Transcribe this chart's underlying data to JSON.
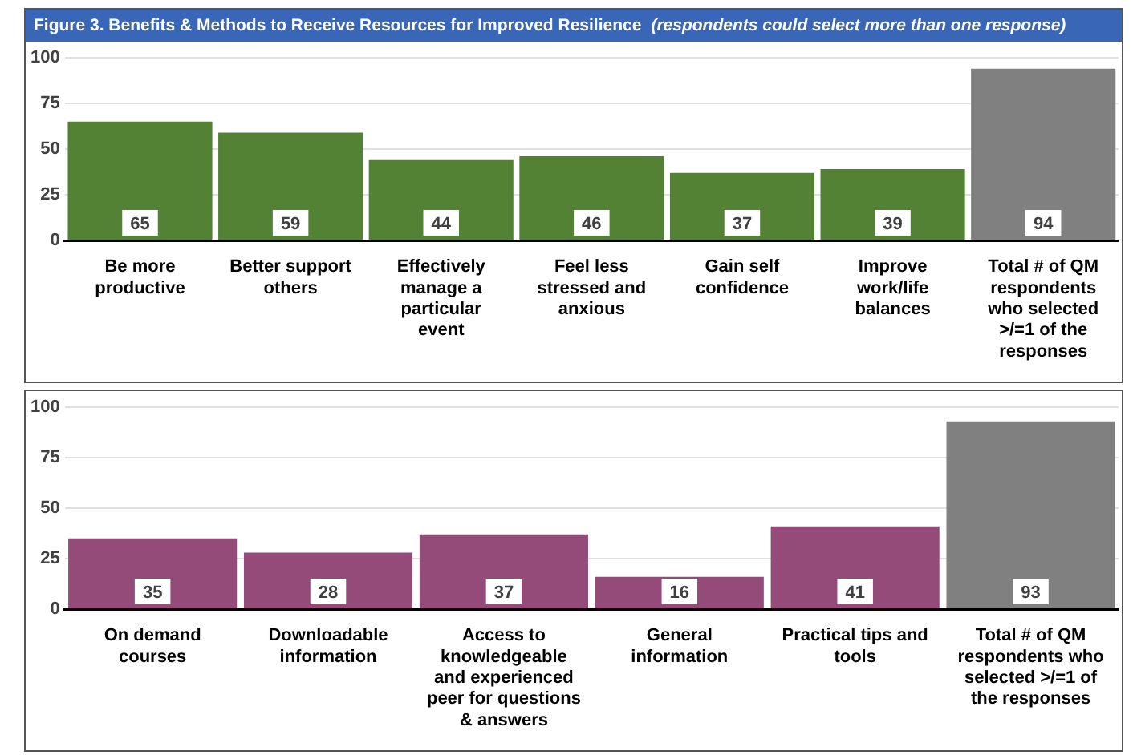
{
  "chart_data": [
    {
      "type": "bar",
      "title": "Figure 3. Benefits & Methods to Receive Resources for Improved Resilience",
      "subtitle": "(respondents could select more than one response)",
      "categories": [
        "Be more productive",
        "Better support others",
        "Effectively manage a particular event",
        "Feel less stressed and anxious",
        "Gain self confidence",
        "Improve work/life balances",
        "Total # of QM respondents who selected >/=1 of the responses"
      ],
      "values": [
        65,
        59,
        44,
        46,
        37,
        39,
        94
      ],
      "colors": [
        "#548235",
        "#548235",
        "#548235",
        "#548235",
        "#548235",
        "#548235",
        "#808080"
      ],
      "ylim": [
        0,
        100
      ],
      "yticks": [
        0,
        25,
        50,
        75,
        100
      ],
      "grid": "y",
      "data_labels": true
    },
    {
      "type": "bar",
      "categories": [
        "On demand courses",
        "Downloadable information",
        "Access to knowledgeable and experienced peer for questions & answers",
        "General information",
        "Practical tips and tools",
        "Total # of QM respondents who selected >/=1 of the responses"
      ],
      "values": [
        35,
        28,
        37,
        16,
        41,
        93
      ],
      "colors": [
        "#954b79",
        "#954b79",
        "#954b79",
        "#954b79",
        "#954b79",
        "#808080"
      ],
      "ylim": [
        0,
        100
      ],
      "yticks": [
        0,
        25,
        50,
        75,
        100
      ],
      "grid": "y",
      "data_labels": true
    }
  ]
}
